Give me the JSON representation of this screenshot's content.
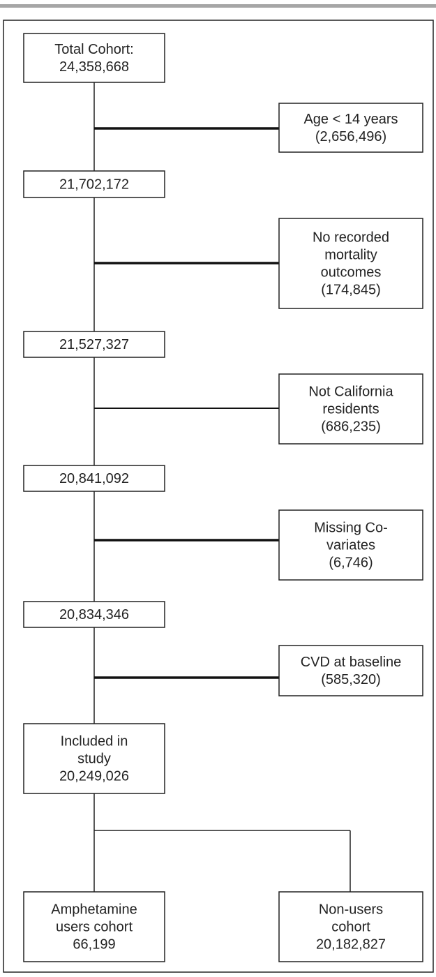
{
  "boxes": [
    {
      "lines": [
        "Total Cohort:",
        "24,358,668"
      ]
    },
    {
      "lines": [
        "Age < 14 years",
        "(2,656,496)"
      ]
    },
    {
      "lines": [
        "21,702,172"
      ]
    },
    {
      "lines": [
        "No recorded",
        "mortality",
        "outcomes",
        "(174,845)"
      ]
    },
    {
      "lines": [
        "21,527,327"
      ]
    },
    {
      "lines": [
        "Not California",
        "residents",
        "(686,235)"
      ]
    },
    {
      "lines": [
        "20,841,092"
      ]
    },
    {
      "lines": [
        "Missing Co-",
        "variates",
        "(6,746)"
      ]
    },
    {
      "lines": [
        "20,834,346"
      ]
    },
    {
      "lines": [
        "CVD at baseline",
        "(585,320)"
      ]
    },
    {
      "lines": [
        "Included  in",
        "study",
        "20,249,026"
      ]
    },
    {
      "lines": [
        "Amphetamine",
        "users cohort",
        "66,199"
      ]
    },
    {
      "lines": [
        "Non-users",
        "cohort",
        "20,182,827"
      ]
    }
  ]
}
